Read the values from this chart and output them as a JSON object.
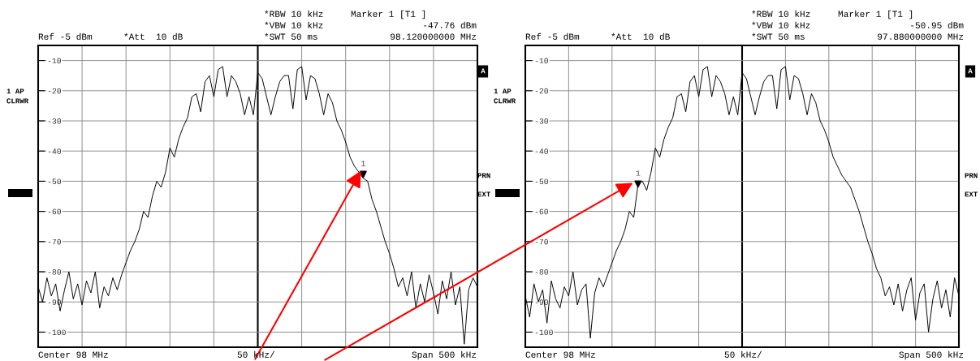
{
  "chart_data": [
    {
      "type": "line",
      "ylim": [
        -105,
        -5
      ],
      "yticks": [
        -10,
        -20,
        -30,
        -40,
        -50,
        -60,
        -70,
        -80,
        -90,
        -100
      ],
      "grid": true,
      "tick_labels": "y",
      "categories": [
        null,
        null,
        null,
        null,
        null,
        null,
        null,
        null,
        null,
        null,
        null,
        null,
        null,
        null,
        null,
        null,
        null,
        null,
        null,
        null,
        null,
        null,
        null,
        null,
        null,
        null,
        null,
        null,
        null,
        null,
        null,
        null,
        null,
        null,
        null,
        null,
        null,
        null,
        null,
        null,
        null,
        null,
        null,
        null,
        null,
        null,
        null,
        null,
        null,
        null,
        null,
        null,
        null,
        null,
        null,
        null,
        null,
        null,
        null,
        null,
        null,
        null,
        null,
        null,
        null,
        null,
        null,
        null,
        null,
        null,
        null,
        null,
        null,
        null,
        null,
        null,
        null,
        null,
        null,
        null,
        null,
        null,
        null,
        null,
        null,
        null,
        null,
        null,
        null,
        null,
        null,
        null,
        null,
        null,
        null,
        null,
        null,
        null,
        null,
        null,
        null
      ],
      "series": [
        {
          "color": "#000000",
          "values": [
            -85,
            -90,
            -82,
            -88,
            -84,
            -93,
            -86,
            -80,
            -89,
            -84,
            -91,
            -83,
            -87,
            -80,
            -92,
            -85,
            -88,
            -82,
            -86,
            -81,
            -77,
            -73,
            -70,
            -66,
            -60,
            -62,
            -55,
            -50,
            -52,
            -47,
            -39,
            -42,
            -36,
            -32,
            -29,
            -22,
            -21,
            -27,
            -17,
            -15,
            -22,
            -13,
            -12,
            -22,
            -15,
            -17,
            -21,
            -28,
            -22,
            -28,
            -14,
            -16,
            -22,
            -28,
            -22,
            -17,
            -15,
            -15,
            -26,
            -13,
            -12,
            -23,
            -15,
            -16,
            -21,
            -28,
            -21,
            -24,
            -30,
            -33,
            -37,
            -42,
            -45,
            -47,
            -49,
            -50,
            -56,
            -60,
            -65,
            -70,
            -74,
            -79,
            -85,
            -82,
            -88,
            -80,
            -92,
            -84,
            -90,
            -81,
            -87,
            -94,
            -83,
            -89,
            -80,
            -91,
            -85,
            -104,
            -86,
            -82,
            -85
          ]
        },
        {
          "type": "scatter",
          "marker": "triangle",
          "color": "#000000",
          "values": [
            null,
            null,
            null,
            null,
            null,
            null,
            null,
            null,
            null,
            null,
            null,
            null,
            null,
            null,
            null,
            null,
            null,
            null,
            null,
            null,
            null,
            null,
            null,
            null,
            null,
            null,
            null,
            null,
            null,
            null,
            null,
            null,
            null,
            null,
            null,
            null,
            null,
            null,
            null,
            null,
            null,
            null,
            null,
            null,
            null,
            null,
            null,
            null,
            null,
            null,
            null,
            null,
            null,
            null,
            null,
            null,
            null,
            null,
            null,
            null,
            null,
            null,
            null,
            null,
            null,
            null,
            null,
            null,
            null,
            null,
            null,
            null,
            null,
            null,
            -47.76,
            null,
            null,
            null,
            null,
            null,
            null,
            null,
            null,
            null,
            null,
            null,
            null,
            null,
            null,
            null,
            null,
            null,
            null,
            null,
            null,
            null,
            null,
            null,
            null,
            null,
            null
          ]
        }
      ],
      "annotations": [
        "Ref -5 dBm",
        "*Att  10 dB",
        "*RBW 10 kHz",
        "*VBW 10 kHz",
        "*SWT 50 ms",
        "Marker 1 [T1 ]",
        "-47.76 dBm",
        "98.120000000 MHz",
        "1 AP",
        "CLRWR",
        "A",
        "PRN",
        "EXT",
        "Center 98 MHz",
        "50 kHz/",
        "Span 500 kHz",
        "1"
      ]
    },
    {
      "type": "line",
      "ylim": [
        -105,
        -5
      ],
      "yticks": [
        -10,
        -20,
        -30,
        -40,
        -50,
        -60,
        -70,
        -80,
        -90,
        -100
      ],
      "grid": true,
      "tick_labels": "y",
      "categories": [
        null,
        null,
        null,
        null,
        null,
        null,
        null,
        null,
        null,
        null,
        null,
        null,
        null,
        null,
        null,
        null,
        null,
        null,
        null,
        null,
        null,
        null,
        null,
        null,
        null,
        null,
        null,
        null,
        null,
        null,
        null,
        null,
        null,
        null,
        null,
        null,
        null,
        null,
        null,
        null,
        null,
        null,
        null,
        null,
        null,
        null,
        null,
        null,
        null,
        null,
        null,
        null,
        null,
        null,
        null,
        null,
        null,
        null,
        null,
        null,
        null,
        null,
        null,
        null,
        null,
        null,
        null,
        null,
        null,
        null,
        null,
        null,
        null,
        null,
        null,
        null,
        null,
        null,
        null,
        null,
        null,
        null,
        null,
        null,
        null,
        null,
        null,
        null,
        null,
        null,
        null,
        null,
        null,
        null,
        null,
        null,
        null,
        null,
        null,
        null,
        null
      ],
      "series": [
        {
          "color": "#000000",
          "values": [
            -88,
            -95,
            -84,
            -90,
            -86,
            -97,
            -83,
            -89,
            -92,
            -85,
            -88,
            -80,
            -91,
            -86,
            -84,
            -102,
            -87,
            -82,
            -85,
            -81,
            -77,
            -73,
            -70,
            -66,
            -60,
            -62,
            -51,
            -50,
            -53,
            -47,
            -39,
            -42,
            -36,
            -32,
            -29,
            -22,
            -21,
            -27,
            -17,
            -15,
            -22,
            -13,
            -12,
            -22,
            -15,
            -17,
            -21,
            -28,
            -22,
            -28,
            -14,
            -16,
            -22,
            -28,
            -22,
            -17,
            -15,
            -15,
            -26,
            -13,
            -12,
            -23,
            -15,
            -16,
            -21,
            -28,
            -21,
            -24,
            -30,
            -33,
            -37,
            -42,
            -45,
            -48,
            -50,
            -52,
            -56,
            -60,
            -65,
            -70,
            -74,
            -79,
            -82,
            -88,
            -85,
            -91,
            -84,
            -93,
            -86,
            -82,
            -96,
            -87,
            -84,
            -100,
            -89,
            -83,
            -92,
            -86,
            -95,
            -82,
            -88
          ]
        },
        {
          "type": "scatter",
          "marker": "triangle",
          "color": "#000000",
          "values": [
            null,
            null,
            null,
            null,
            null,
            null,
            null,
            null,
            null,
            null,
            null,
            null,
            null,
            null,
            null,
            null,
            null,
            null,
            null,
            null,
            null,
            null,
            null,
            null,
            null,
            null,
            -50.95,
            null,
            null,
            null,
            null,
            null,
            null,
            null,
            null,
            null,
            null,
            null,
            null,
            null,
            null,
            null,
            null,
            null,
            null,
            null,
            null,
            null,
            null,
            null,
            null,
            null,
            null,
            null,
            null,
            null,
            null,
            null,
            null,
            null,
            null,
            null,
            null,
            null,
            null,
            null,
            null,
            null,
            null,
            null,
            null,
            null,
            null,
            null,
            null,
            null,
            null,
            null,
            null,
            null,
            null,
            null,
            null,
            null,
            null,
            null,
            null,
            null,
            null,
            null,
            null,
            null,
            null,
            null,
            null,
            null,
            null,
            null,
            null,
            null,
            null
          ]
        }
      ],
      "annotations": [
        "Ref -5 dBm",
        "*Att  10 dB",
        "*RBW 10 kHz",
        "*VBW 10 kHz",
        "*SWT 50 ms",
        "Marker 1 [T1 ]",
        "-50.95 dBm",
        "97.880000000 MHz",
        "1 AP",
        "CLRWR",
        "A",
        "PRN",
        "EXT",
        "Center 98 MHz",
        "50 kHz/",
        "Span 500 kHz",
        "1"
      ]
    }
  ]
}
